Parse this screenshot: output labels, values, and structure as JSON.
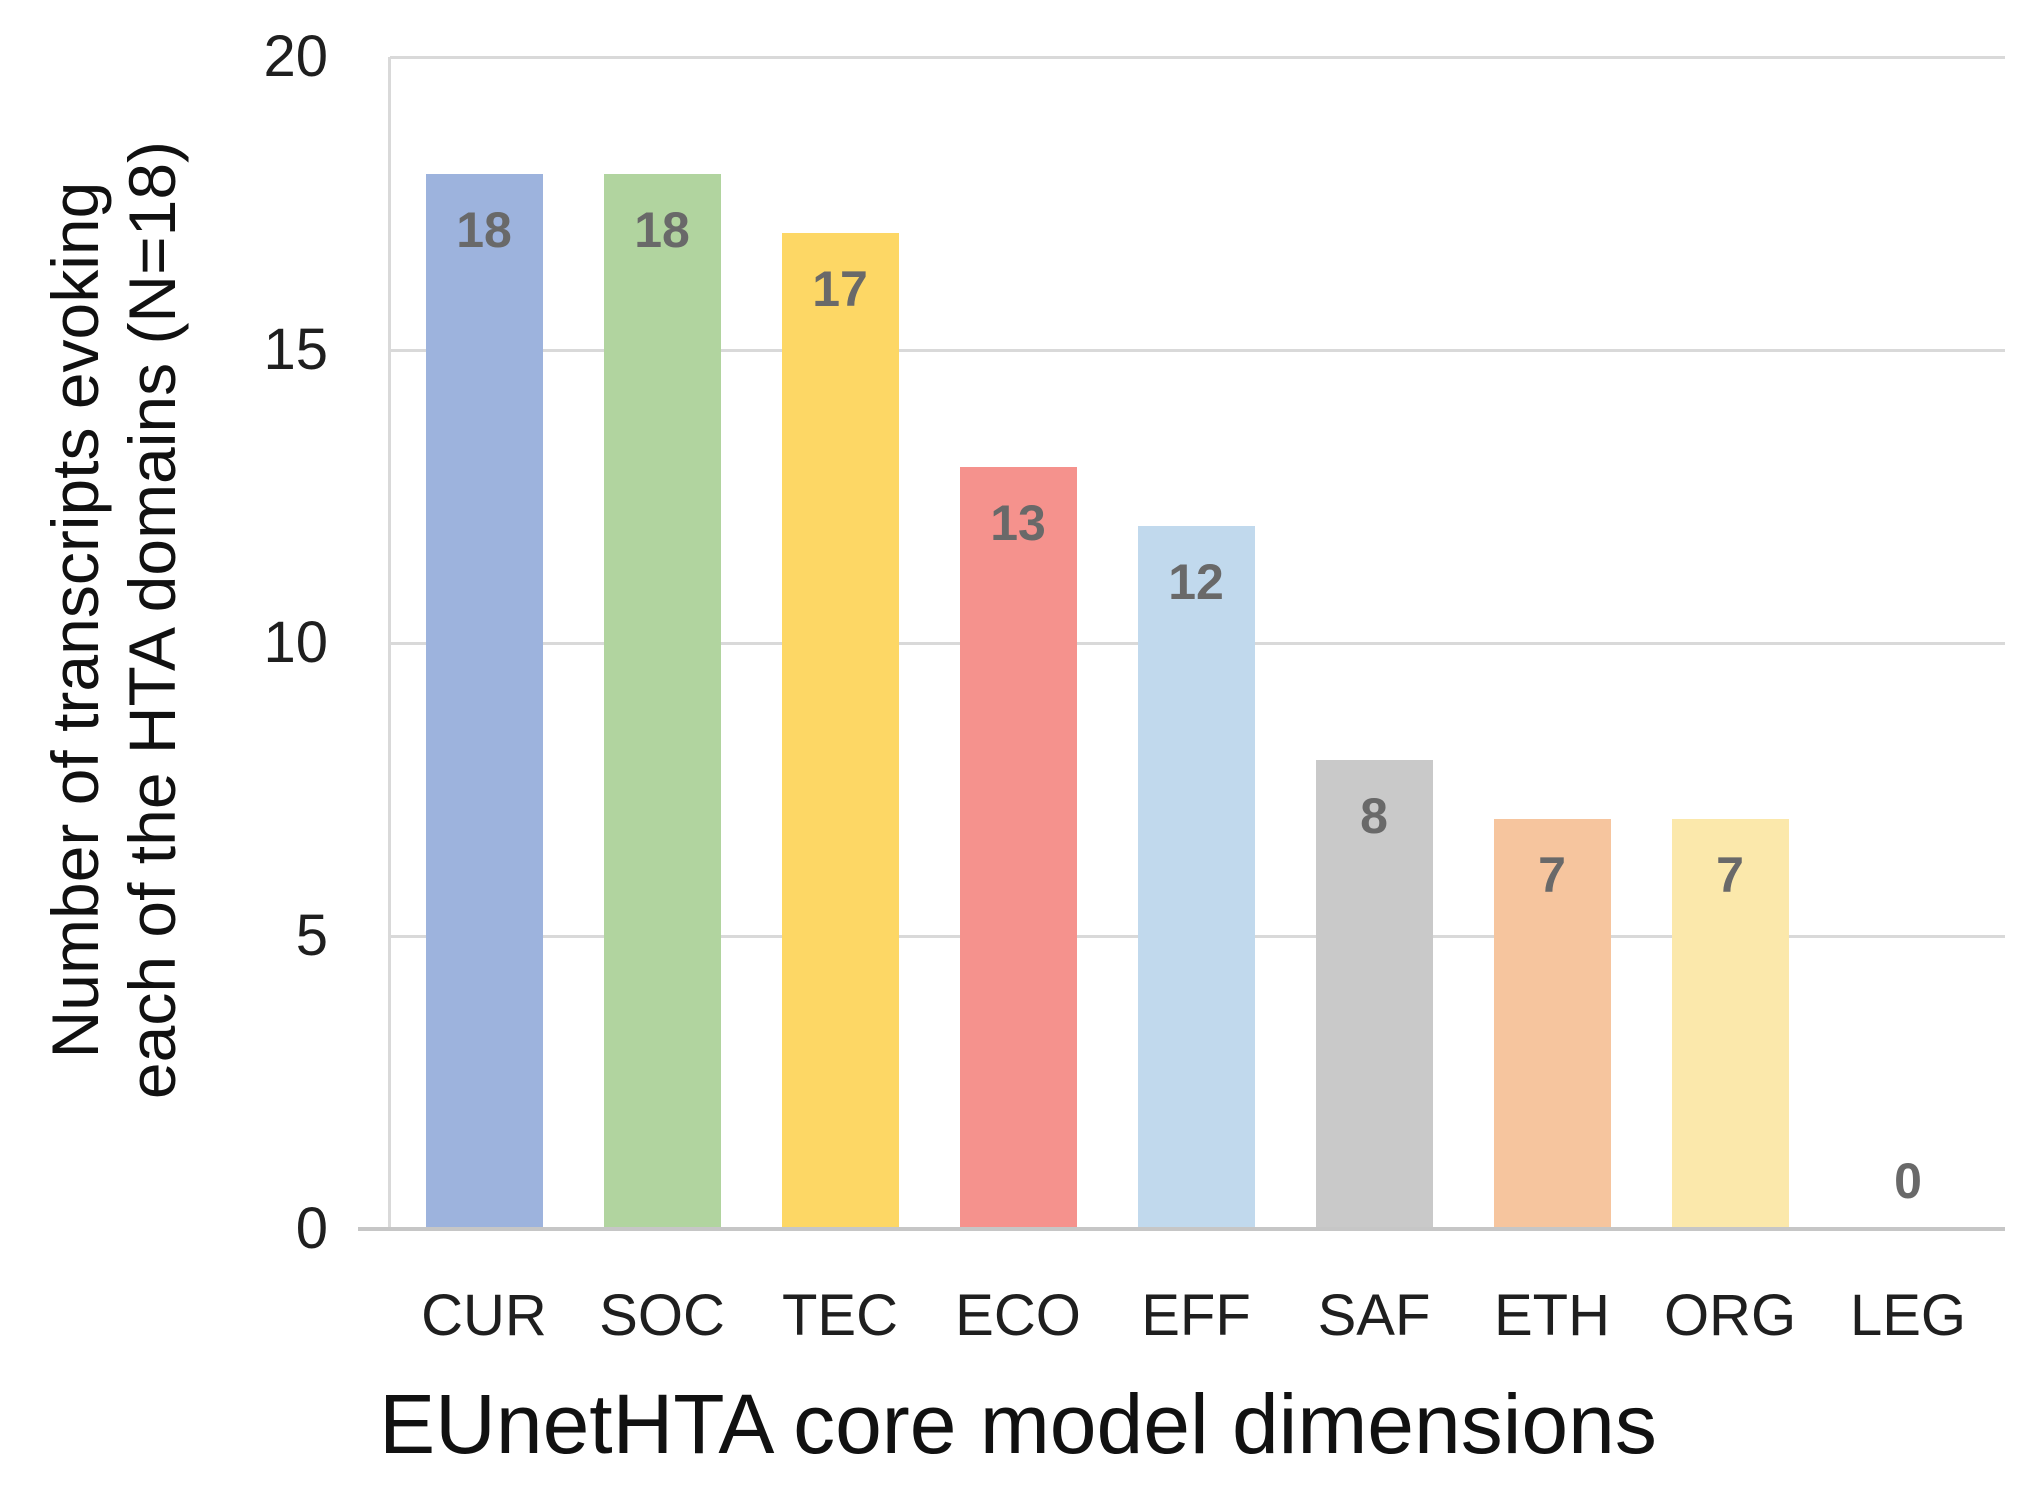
{
  "chart_data": {
    "type": "bar",
    "categories": [
      "CUR",
      "SOC",
      "TEC",
      "ECO",
      "EFF",
      "SAF",
      "ETH",
      "ORG",
      "LEG"
    ],
    "values": [
      18,
      18,
      17,
      13,
      12,
      8,
      7,
      7,
      0
    ],
    "bar_colors": [
      "#9db3dd",
      "#b1d49f",
      "#fdd765",
      "#f5928d",
      "#c1d9ed",
      "#c9c9c9",
      "#f6c59e",
      "#fbe8ab",
      null
    ],
    "title": "",
    "xlabel": "EUnetHTA core model dimensions",
    "ylabel": "Number of transcripts evoking\neach of the HTA domains (N=18)",
    "yticks": [
      0,
      5,
      10,
      15,
      20
    ],
    "ylim": [
      0,
      20
    ],
    "grid": "horizontal",
    "legend": "none",
    "gridline_color": "#d9d9d9",
    "axis_line_color": "#c6c6c6",
    "value_label_color": "#696969",
    "background_color": "#ffffff"
  }
}
